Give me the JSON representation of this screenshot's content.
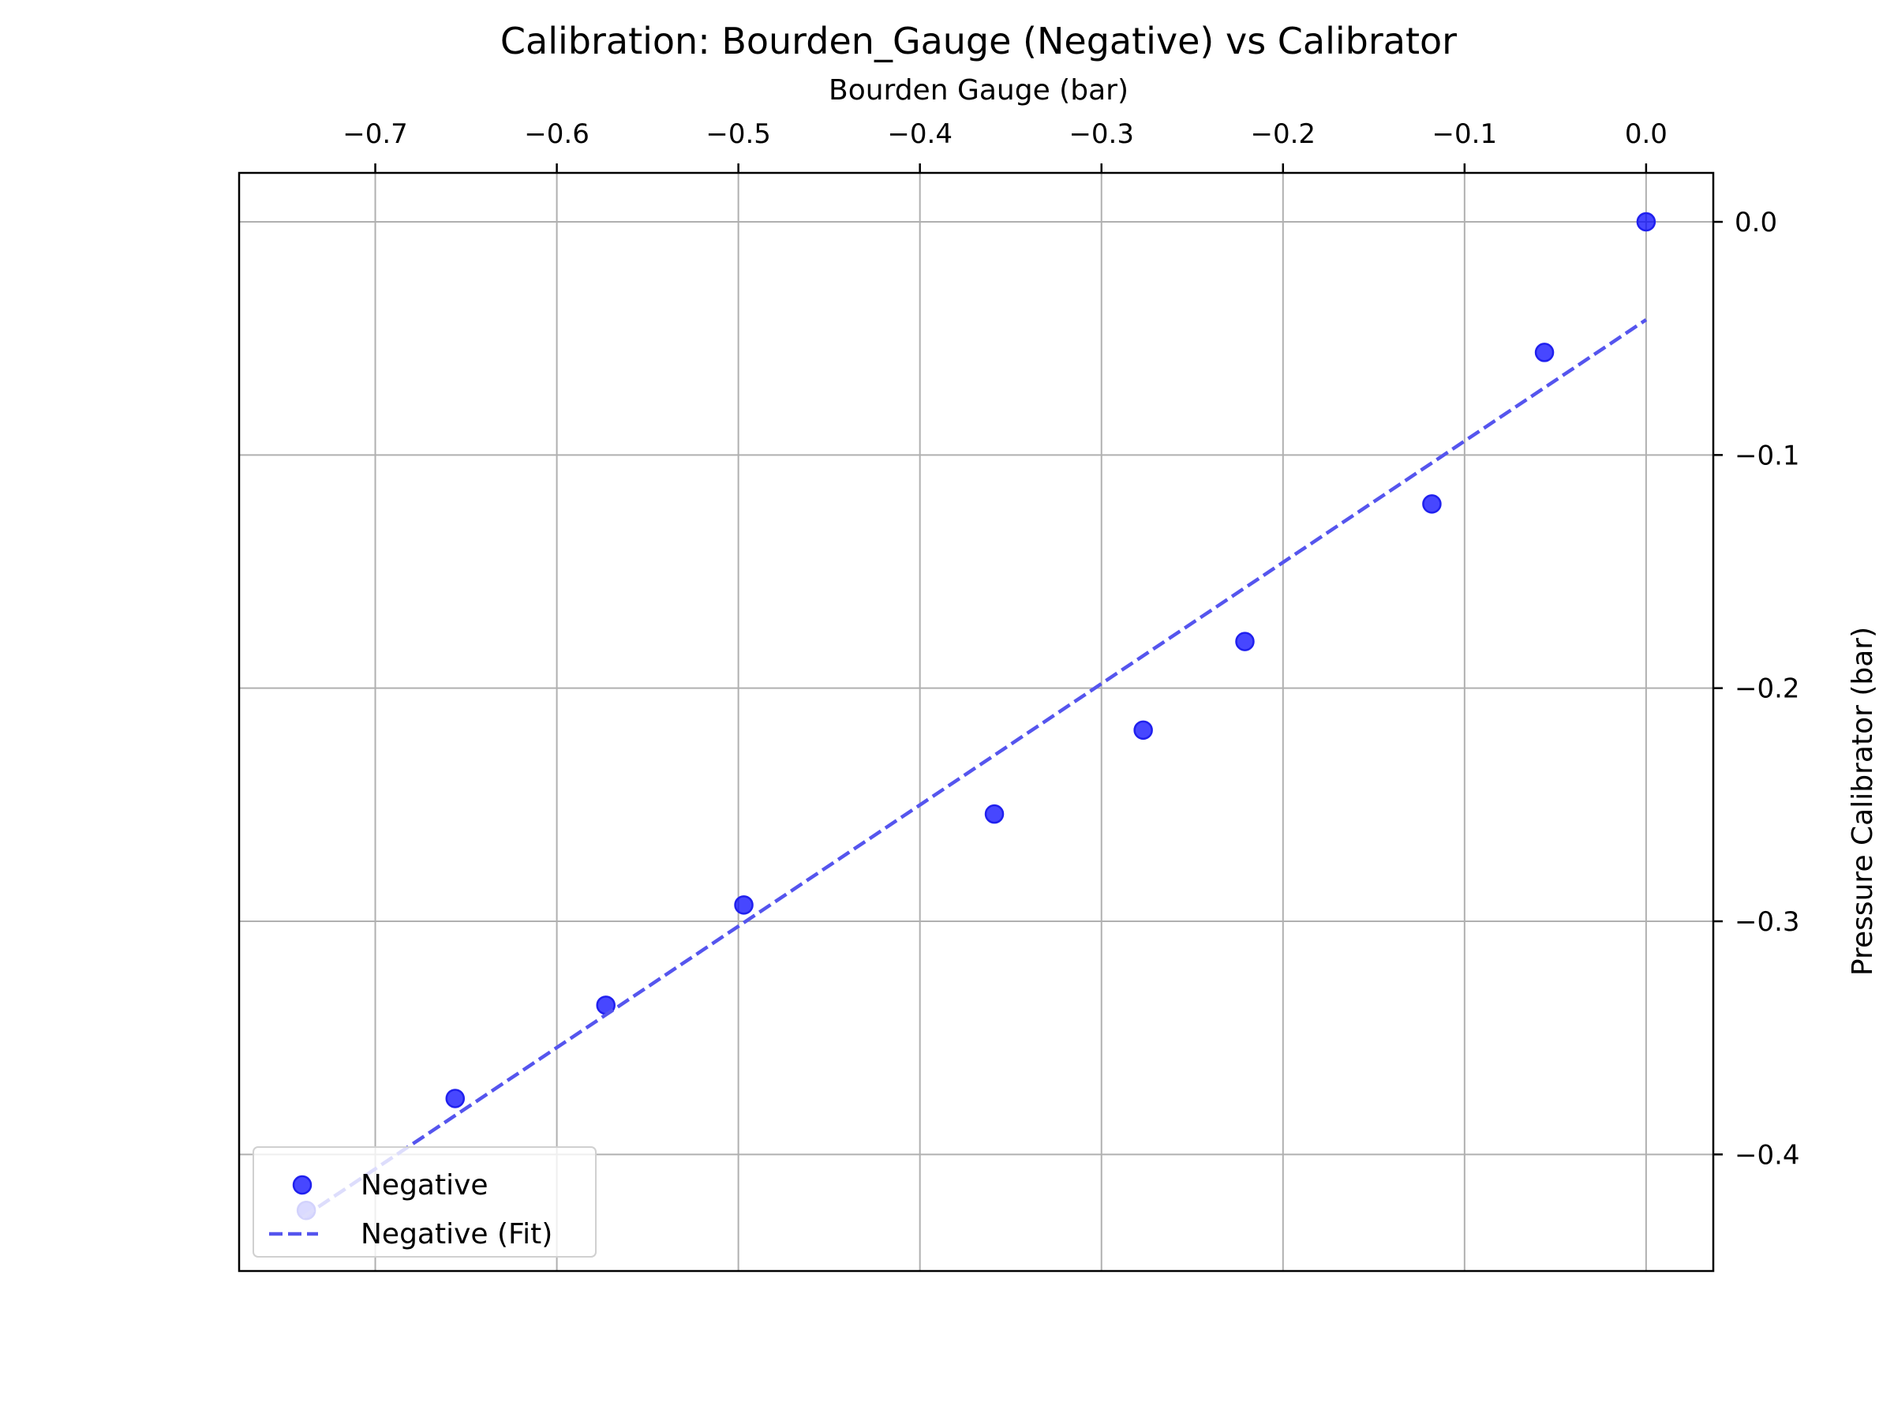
{
  "chart_data": {
    "type": "scatter",
    "title": "Calibration: Bourden_Gauge (Negative) vs Calibrator",
    "xlabel": "Bourden Gauge (bar)",
    "ylabel": "Pressure Calibrator (bar)",
    "xlim": [
      -0.775,
      0.037
    ],
    "ylim": [
      -0.45,
      0.021
    ],
    "x_axis_position": "top",
    "y_axis_position": "right",
    "grid": true,
    "legend_position": "lower-left",
    "xticks": [
      {
        "value": -0.7,
        "label": "−0.7"
      },
      {
        "value": -0.6,
        "label": "−0.6"
      },
      {
        "value": -0.5,
        "label": "−0.5"
      },
      {
        "value": -0.4,
        "label": "−0.4"
      },
      {
        "value": -0.3,
        "label": "−0.3"
      },
      {
        "value": -0.2,
        "label": "−0.2"
      },
      {
        "value": -0.1,
        "label": "−0.1"
      },
      {
        "value": 0.0,
        "label": "0.0"
      }
    ],
    "yticks": [
      {
        "value": 0.0,
        "label": "0.0"
      },
      {
        "value": -0.1,
        "label": "−0.1"
      },
      {
        "value": -0.2,
        "label": "−0.2"
      },
      {
        "value": -0.3,
        "label": "−0.3"
      },
      {
        "value": -0.4,
        "label": "−0.4"
      }
    ],
    "series": [
      {
        "name": "Negative",
        "kind": "scatter",
        "color": "#0000ff",
        "edge_color": "#2020ee",
        "points": [
          {
            "x": 0.0,
            "y": 0.0
          },
          {
            "x": -0.056,
            "y": -0.056
          },
          {
            "x": -0.118,
            "y": -0.121
          },
          {
            "x": -0.221,
            "y": -0.18
          },
          {
            "x": -0.277,
            "y": -0.218
          },
          {
            "x": -0.359,
            "y": -0.254
          },
          {
            "x": -0.497,
            "y": -0.293
          },
          {
            "x": -0.573,
            "y": -0.336
          },
          {
            "x": -0.656,
            "y": -0.376
          },
          {
            "x": -0.738,
            "y": -0.424
          }
        ]
      },
      {
        "name": "Negative (Fit)",
        "kind": "line",
        "style": "dashed",
        "color": "#5555ee",
        "points": [
          {
            "x": -0.74,
            "y": -0.427
          },
          {
            "x": 0.0,
            "y": -0.042
          }
        ]
      }
    ]
  }
}
